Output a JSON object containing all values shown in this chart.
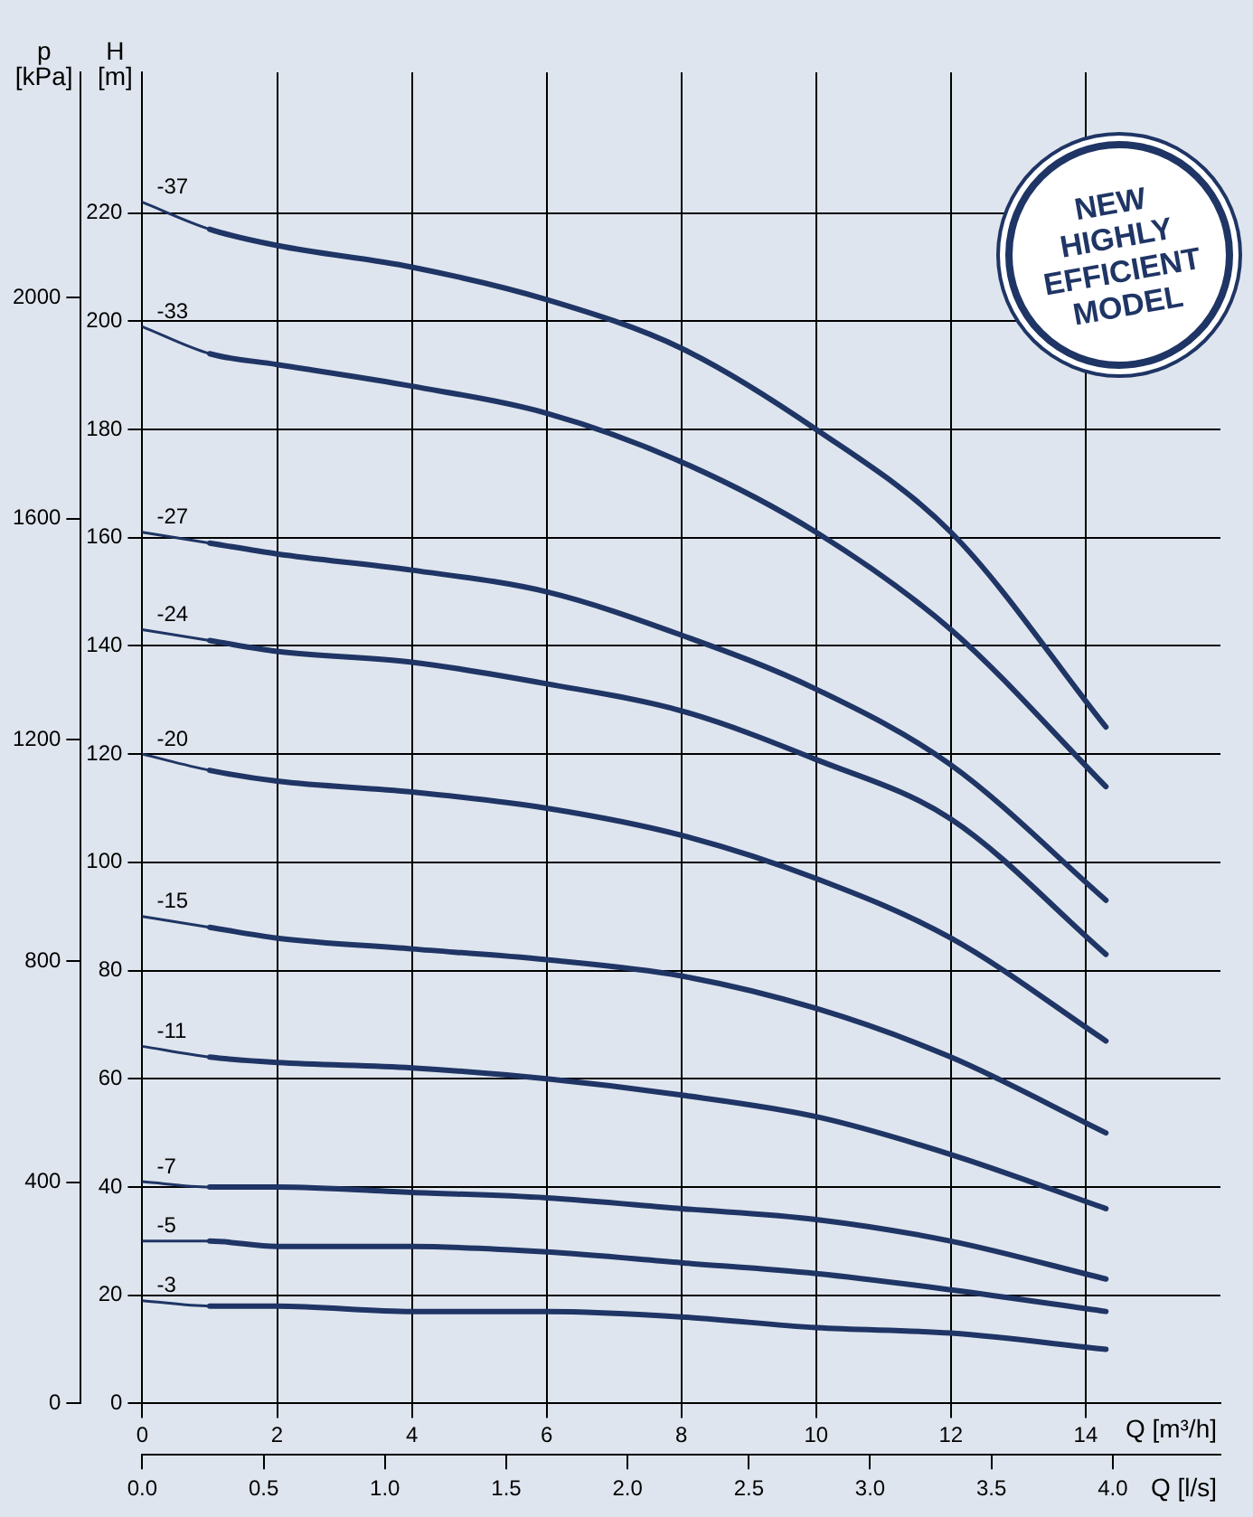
{
  "chart_data": {
    "type": "line",
    "xlabel": "Q [m³/h]",
    "x2label": "Q [l/s]",
    "ylabel": "H [m]",
    "y2label": "p [kPa]",
    "annotations": [
      "NEW HIGHLY EFFICIENT MODEL"
    ],
    "x": [
      0,
      1,
      2,
      4,
      6,
      8,
      10,
      12,
      14.3
    ],
    "xlim": [
      0,
      16
    ],
    "xticks": [
      0,
      2,
      4,
      6,
      8,
      10,
      12,
      14
    ],
    "x2lim": [
      0,
      4.444
    ],
    "x2ticks": [
      {
        "value": 0,
        "label": "0.0"
      },
      {
        "value": 0.5,
        "label": "0.5"
      },
      {
        "value": 1,
        "label": "1.0"
      },
      {
        "value": 1.5,
        "label": "1.5"
      },
      {
        "value": 2,
        "label": "2.0"
      },
      {
        "value": 2.5,
        "label": "2.5"
      },
      {
        "value": 3,
        "label": "3.0"
      },
      {
        "value": 3.5,
        "label": "3.5"
      },
      {
        "value": 4,
        "label": "4.0"
      }
    ],
    "ylim": [
      0,
      246
    ],
    "yticks": [
      0,
      20,
      40,
      60,
      80,
      100,
      120,
      140,
      160,
      180,
      200,
      220
    ],
    "y2lim": [
      0,
      2407
    ],
    "y2ticks": [
      0,
      400,
      800,
      1200,
      1600,
      2000
    ],
    "grid": true,
    "legend": false,
    "series": [
      {
        "name": "-37",
        "color": "#1f3565",
        "values": [
          222,
          217,
          214,
          210,
          204,
          195,
          180,
          161,
          125
        ]
      },
      {
        "name": "-33",
        "color": "#1f3565",
        "values": [
          199,
          194,
          192,
          188,
          183,
          174,
          161,
          143,
          114
        ]
      },
      {
        "name": "-27",
        "color": "#1f3565",
        "values": [
          161,
          159,
          157,
          154,
          150,
          142,
          132,
          118,
          93
        ]
      },
      {
        "name": "-24",
        "color": "#1f3565",
        "values": [
          143,
          141,
          139,
          137,
          133,
          128,
          119,
          108,
          83
        ]
      },
      {
        "name": "-20",
        "color": "#1f3565",
        "values": [
          120,
          117,
          115,
          113,
          110,
          105,
          97,
          86,
          67
        ]
      },
      {
        "name": "-15",
        "color": "#1f3565",
        "values": [
          90,
          88,
          86,
          84,
          82,
          79,
          73,
          64,
          50
        ]
      },
      {
        "name": "-11",
        "color": "#1f3565",
        "values": [
          66,
          64,
          63,
          62,
          60,
          57,
          53,
          46,
          36
        ]
      },
      {
        "name": "-7",
        "color": "#1f3565",
        "values": [
          41,
          40,
          40,
          39,
          38,
          36,
          34,
          30,
          23
        ]
      },
      {
        "name": "-5",
        "color": "#1f3565",
        "values": [
          30,
          30,
          29,
          29,
          28,
          26,
          24,
          21,
          17
        ]
      },
      {
        "name": "-3",
        "color": "#1f3565",
        "values": [
          19,
          18,
          18,
          17,
          17,
          16,
          14,
          13,
          10
        ]
      }
    ]
  }
}
